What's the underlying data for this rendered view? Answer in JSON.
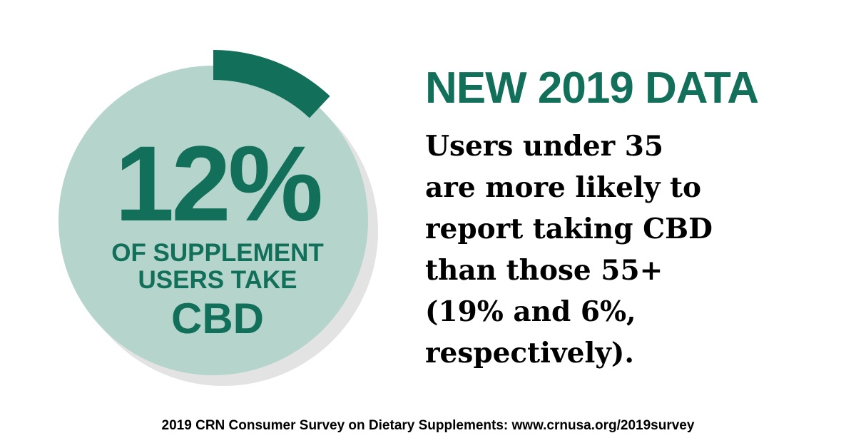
{
  "colors": {
    "accent": "#12705a",
    "ring_fill": "#b5d4cc",
    "shadow": "#e3e3e3",
    "text": "#000000"
  },
  "chart_data": {
    "type": "pie",
    "values": [
      12
    ],
    "value_label": "12%",
    "caption_lines": [
      "OF SUPPLEMENT",
      "USERS TAKE"
    ],
    "caption_emphasis": "CBD"
  },
  "headline": "NEW 2019 DATA",
  "body_lines": [
    "Users under 35",
    "are more likely to",
    "report taking CBD",
    "than those 55+",
    "(19% and 6%,",
    "respectively)."
  ],
  "source": "2019 CRN Consumer Survey on Dietary Supplements: www.crnusa.org/2019survey"
}
